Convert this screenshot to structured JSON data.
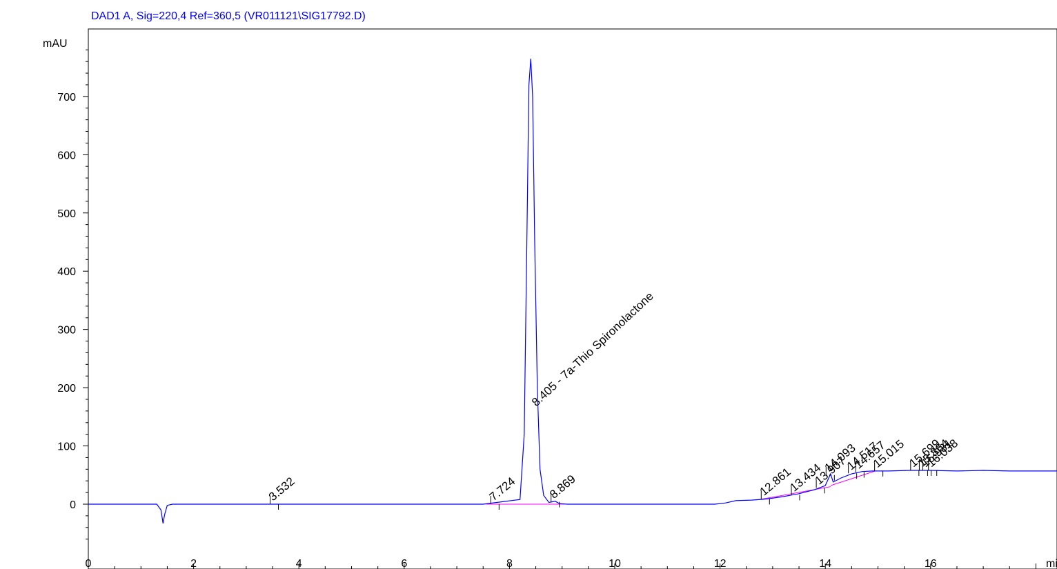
{
  "chart_data": {
    "type": "line",
    "title": "DAD1 A, Sig=220,4 Ref=360,5 (VR011121\\SIG17792.D)",
    "ylabel": "mAU",
    "xlabel": "min",
    "xlim": [
      0,
      18.4
    ],
    "ylim": [
      -75,
      810
    ],
    "x_ticks": [
      0,
      2,
      4,
      6,
      8,
      10,
      12,
      14,
      16
    ],
    "y_ticks": [
      0,
      100,
      200,
      300,
      400,
      500,
      600,
      700
    ],
    "x_tick_labels": [
      "0",
      "2",
      "4",
      "6",
      "8",
      "10",
      "12",
      "14",
      "16"
    ],
    "y_tick_labels": [
      "0",
      "100",
      "200",
      "300",
      "400",
      "500",
      "600",
      "700"
    ],
    "series": [
      {
        "color": "#0000ff",
        "x": [
          0.0,
          1.3,
          1.38,
          1.42,
          1.45,
          1.5,
          1.6,
          3.5,
          3.7,
          7.5,
          8.2,
          8.28,
          8.33,
          8.37,
          8.405,
          8.44,
          8.48,
          8.53,
          8.58,
          8.65,
          8.75,
          8.87,
          8.95,
          9.1,
          11.9,
          12.1,
          12.3,
          12.6,
          12.9,
          13.2,
          13.5,
          13.8,
          14.0,
          14.1,
          14.15,
          14.3,
          14.5,
          14.7,
          14.9,
          15.2,
          15.6,
          16.0,
          16.5,
          17.0,
          17.5,
          18.4
        ],
        "y": [
          0,
          0,
          -10,
          -33,
          -18,
          -2,
          0,
          0,
          0,
          0,
          8,
          120,
          450,
          720,
          765,
          700,
          450,
          200,
          60,
          15,
          3,
          5,
          1,
          0,
          0,
          2,
          6,
          7,
          9,
          13,
          18,
          25,
          32,
          52,
          38,
          45,
          52,
          56,
          57,
          57,
          58,
          58,
          57,
          58,
          57,
          57
        ]
      }
    ],
    "peaks": [
      {
        "rt": "3.532",
        "x": 3.532,
        "y": 0
      },
      {
        "rt": "7.724",
        "x": 7.724,
        "y": 0
      },
      {
        "rt": "8.869",
        "x": 8.869,
        "y": 4
      },
      {
        "rt": "12.861",
        "x": 12.861,
        "y": 9
      },
      {
        "rt": "13.434",
        "x": 13.434,
        "y": 16
      },
      {
        "rt": "13.907",
        "x": 13.907,
        "y": 28
      },
      {
        "rt": "14.093",
        "x": 14.093,
        "y": 50
      },
      {
        "rt": "14.517",
        "x": 14.517,
        "y": 53
      },
      {
        "rt": "14.657",
        "x": 14.657,
        "y": 55
      },
      {
        "rt": "15.015",
        "x": 15.015,
        "y": 57
      },
      {
        "rt": "15.699",
        "x": 15.699,
        "y": 58
      },
      {
        "rt": "15.864",
        "x": 15.864,
        "y": 58
      },
      {
        "rt": "15.931",
        "x": 15.931,
        "y": 58
      },
      {
        "rt": "16.038",
        "x": 16.038,
        "y": 58
      }
    ],
    "main_peak": {
      "label": "8.405 - 7a-Thio Spironolactone",
      "x": 8.405,
      "y": 765
    }
  }
}
